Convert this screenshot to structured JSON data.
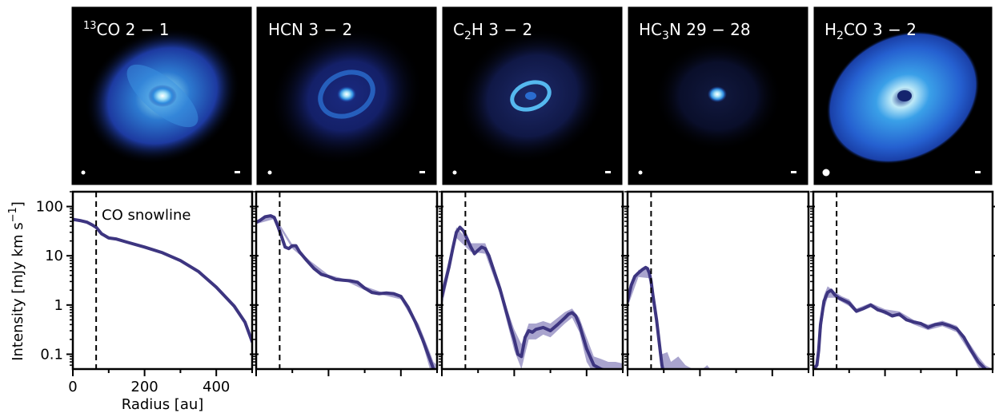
{
  "colors": {
    "line": "#3d3580",
    "band": "#8c86bd",
    "snowline": "#000000",
    "panel_bg": "#000000"
  },
  "chart_data": {
    "type": "line",
    "ylabel": "Intensity [mJy km s",
    "ylabel_sup": "−1",
    "ylabel_close": "]",
    "xlabel": "Radius [au]",
    "y_scale": "log",
    "ylim": [
      0.05,
      200
    ],
    "xlim": [
      0,
      500
    ],
    "yticks": [
      {
        "value": 100,
        "label": "100"
      },
      {
        "value": 10,
        "label": "10"
      },
      {
        "value": 1,
        "label": "1"
      },
      {
        "value": 0.1,
        "label": "0.1"
      }
    ],
    "xticks": [
      {
        "value": 0,
        "label": "0"
      },
      {
        "value": 200,
        "label": "200"
      },
      {
        "value": 400,
        "label": "400"
      }
    ],
    "annotation": "CO snowline",
    "snowline_radius": 65,
    "panels": [
      {
        "id": "13co",
        "title_sup": "13",
        "title": "CO 2 − 1",
        "r_max": 500,
        "x": [
          0,
          20,
          40,
          55,
          65,
          80,
          100,
          120,
          150,
          200,
          250,
          300,
          350,
          400,
          450,
          480,
          500
        ],
        "y": [
          55,
          52,
          48,
          42,
          38,
          28,
          23,
          22,
          19,
          15,
          11.5,
          8,
          4.8,
          2.3,
          0.95,
          0.45,
          0.18
        ]
      },
      {
        "id": "hcn",
        "title": "HCN 3 − 2",
        "r_max": 500,
        "x": [
          0,
          10,
          25,
          40,
          50,
          60,
          70,
          80,
          90,
          100,
          110,
          120,
          140,
          160,
          180,
          200,
          220,
          240,
          260,
          280,
          300,
          320,
          340,
          360,
          380,
          400,
          420,
          440,
          460,
          480,
          490,
          500
        ],
        "y": [
          48,
          52,
          62,
          65,
          60,
          40,
          25,
          15,
          14,
          16,
          16,
          12,
          8,
          5.5,
          4.2,
          3.8,
          3.3,
          3.2,
          3.1,
          2.9,
          2.2,
          1.8,
          1.7,
          1.75,
          1.7,
          1.5,
          0.9,
          0.45,
          0.2,
          0.08,
          0.05,
          0.04
        ],
        "band_x": [
          0,
          50,
          100,
          150,
          200,
          250,
          300,
          350,
          400,
          450,
          480,
          490,
          500
        ],
        "band_lo": [
          44,
          56,
          14,
          6.8,
          3.5,
          3.0,
          2.0,
          1.6,
          1.3,
          0.3,
          0.05,
          0.035,
          0.03
        ],
        "band_hi": [
          52,
          66,
          17,
          7.8,
          4.1,
          3.3,
          2.4,
          1.8,
          1.6,
          0.4,
          0.11,
          0.07,
          0.06
        ]
      },
      {
        "id": "c2h",
        "title": "C",
        "title_sub": "2",
        "title_rest": "H 3 − 2",
        "r_max": 500,
        "x": [
          0,
          10,
          20,
          30,
          40,
          50,
          60,
          70,
          80,
          90,
          100,
          110,
          120,
          130,
          140,
          160,
          180,
          190,
          200,
          210,
          220,
          230,
          240,
          250,
          260,
          280,
          300,
          320,
          340,
          350,
          360,
          370,
          380,
          400,
          420,
          440,
          460,
          480,
          490,
          500
        ],
        "y": [
          1.5,
          3,
          6,
          14,
          30,
          38,
          32,
          22,
          15,
          11,
          13,
          15,
          14,
          10,
          6,
          2.2,
          0.65,
          0.35,
          0.2,
          0.1,
          0.09,
          0.22,
          0.3,
          0.28,
          0.32,
          0.35,
          0.3,
          0.4,
          0.55,
          0.65,
          0.7,
          0.6,
          0.4,
          0.13,
          0.06,
          0.05,
          0.045,
          0.04,
          0.04,
          0.04
        ],
        "band_x": [
          0,
          40,
          80,
          120,
          160,
          180,
          200,
          220,
          240,
          260,
          280,
          300,
          340,
          360,
          380,
          400,
          420,
          440,
          460,
          480,
          500
        ],
        "band_lo": [
          0.9,
          23,
          12,
          11,
          1.7,
          0.45,
          0.12,
          0.05,
          0.2,
          0.2,
          0.25,
          0.22,
          0.42,
          0.55,
          0.28,
          0.07,
          0.04,
          0.04,
          0.04,
          0.04,
          0.04
        ],
        "band_hi": [
          2.1,
          38,
          18,
          18,
          2.8,
          0.85,
          0.32,
          0.16,
          0.42,
          0.42,
          0.47,
          0.42,
          0.72,
          0.85,
          0.55,
          0.22,
          0.09,
          0.08,
          0.07,
          0.07,
          0.065
        ]
      },
      {
        "id": "hc3n",
        "title": "HC",
        "title_sub": "3",
        "title_rest": "N 29 − 28",
        "r_max": 500,
        "x": [
          0,
          10,
          20,
          30,
          40,
          50,
          55,
          60,
          65,
          70,
          80,
          90,
          95,
          100,
          110
        ],
        "y": [
          1.2,
          2.5,
          3.8,
          4.5,
          5.2,
          5.8,
          5.5,
          4.5,
          3.0,
          1.6,
          0.5,
          0.12,
          0.06,
          0.04,
          0.035
        ],
        "band_x": [
          0,
          30,
          60,
          80,
          95,
          110,
          120,
          140,
          160,
          180,
          200,
          220,
          240,
          260,
          280,
          300
        ],
        "band_lo": [
          0.9,
          3.7,
          3.5,
          0.35,
          0.04,
          0.03,
          0.03,
          0.03,
          0.03,
          0.03,
          0.03,
          0.03,
          0.03,
          0.03,
          0.03,
          0.03
        ],
        "band_hi": [
          1.6,
          5.2,
          5.5,
          0.7,
          0.1,
          0.11,
          0.07,
          0.09,
          0.06,
          0.05,
          0.045,
          0.06,
          0.04,
          0.035,
          0.05,
          0.04
        ]
      },
      {
        "id": "h2co",
        "title": "H",
        "title_sub": "2",
        "title_rest": "CO 3 − 2",
        "r_max": 500,
        "x": [
          0,
          10,
          15,
          20,
          30,
          40,
          50,
          60,
          70,
          80,
          90,
          100,
          120,
          140,
          160,
          180,
          200,
          220,
          240,
          260,
          280,
          300,
          320,
          340,
          360,
          380,
          400,
          420,
          440,
          460,
          480,
          490,
          500
        ],
        "y": [
          0.05,
          0.06,
          0.12,
          0.4,
          1.2,
          1.8,
          2.0,
          1.6,
          1.4,
          1.3,
          1.2,
          1.1,
          0.75,
          0.85,
          1.0,
          0.8,
          0.72,
          0.6,
          0.65,
          0.5,
          0.45,
          0.42,
          0.35,
          0.4,
          0.42,
          0.38,
          0.33,
          0.22,
          0.12,
          0.07,
          0.05,
          0.04,
          0.04
        ],
        "band_x": [
          10,
          20,
          30,
          40,
          60,
          80,
          100,
          120,
          160,
          200,
          240,
          280,
          320,
          360,
          400,
          440,
          460,
          480,
          500
        ],
        "band_lo": [
          0.04,
          0.2,
          0.8,
          1.4,
          1.4,
          1.15,
          0.95,
          0.68,
          0.9,
          0.64,
          0.58,
          0.4,
          0.31,
          0.37,
          0.28,
          0.1,
          0.055,
          0.04,
          0.035
        ],
        "band_hi": [
          0.08,
          0.6,
          1.6,
          2.4,
          1.85,
          1.5,
          1.3,
          0.85,
          1.1,
          0.82,
          0.74,
          0.5,
          0.4,
          0.48,
          0.38,
          0.15,
          0.09,
          0.06,
          0.05
        ]
      }
    ]
  }
}
